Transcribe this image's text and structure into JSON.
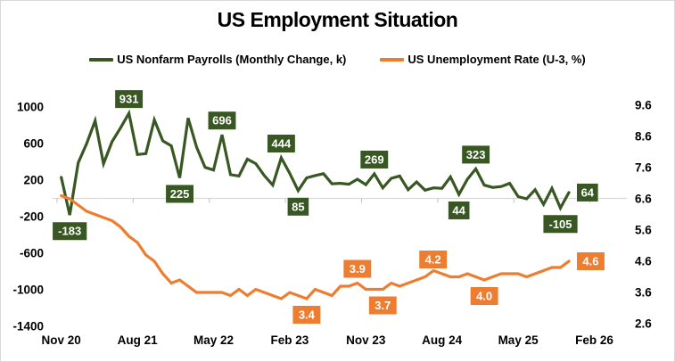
{
  "title": "US Employment Situation",
  "legend": [
    {
      "label": "US Nonfarm Payrolls (Monthly Change, k)",
      "color": "#385723"
    },
    {
      "label": "US Unemployment Rate (U-3, %)",
      "color": "#ED7D31"
    }
  ],
  "colors": {
    "payrolls_green": "#385723",
    "unemployment_orange": "#ED7D31",
    "axis_line": "#D9D9D9",
    "tick_mark": "#BFBFBF",
    "axis_text": "#000000",
    "label_text": "#FFFFFF"
  },
  "chart_data": {
    "type": "line",
    "x_unit": "month",
    "start_month": "Nov 2020",
    "end_month": "Nov 2025",
    "categories_shown": [
      {
        "label": "Nov 20",
        "m": 0
      },
      {
        "label": "Aug 21",
        "m": 9
      },
      {
        "label": "May 22",
        "m": 18
      },
      {
        "label": "Feb 23",
        "m": 27
      },
      {
        "label": "Nov 23",
        "m": 36
      },
      {
        "label": "Aug 24",
        "m": 45
      },
      {
        "label": "May 25",
        "m": 54
      },
      {
        "label": "Feb 26",
        "m": 63
      }
    ],
    "axes": {
      "left": {
        "title": "US Nonfarm Payrolls (Monthly Change, k)",
        "ticks": [
          1000,
          600,
          200,
          -200,
          -600,
          -1000,
          -1400
        ],
        "range": [
          -1400,
          1000
        ]
      },
      "right": {
        "title": "US Unemployment Rate (U-3, %)",
        "ticks": [
          9.6,
          8.6,
          7.6,
          6.6,
          5.6,
          4.6,
          3.6,
          2.6
        ],
        "range": [
          2.6,
          9.6
        ]
      }
    },
    "gridlines": {
      "left_values": [
        0
      ]
    },
    "legend_position": "top",
    "series": [
      {
        "name": "US Nonfarm Payrolls (Monthly Change, k)",
        "axis": "left",
        "color": "#385723",
        "values": [
          230,
          -183,
          390,
          600,
          850,
          380,
          620,
          770,
          931,
          480,
          490,
          860,
          630,
          575,
          225,
          880,
          560,
          340,
          310,
          696,
          260,
          245,
          430,
          380,
          250,
          145,
          444,
          275,
          85,
          225,
          250,
          270,
          160,
          165,
          155,
          210,
          150,
          269,
          115,
          220,
          245,
          95,
          180,
          90,
          115,
          110,
          235,
          44,
          210,
          323,
          145,
          120,
          130,
          165,
          20,
          -5,
          95,
          -65,
          110,
          -105,
          64
        ]
      },
      {
        "name": "US Unemployment Rate (U-3, %)",
        "axis": "right",
        "color": "#ED7D31",
        "values": [
          6.7,
          6.6,
          6.4,
          6.2,
          6.1,
          6.0,
          5.9,
          5.7,
          5.4,
          5.2,
          4.8,
          4.6,
          4.2,
          3.9,
          4.0,
          3.8,
          3.6,
          3.6,
          3.6,
          3.6,
          3.5,
          3.7,
          3.5,
          3.7,
          3.6,
          3.5,
          3.4,
          3.6,
          3.5,
          3.4,
          3.7,
          3.6,
          3.5,
          3.8,
          3.8,
          3.9,
          3.7,
          3.7,
          3.7,
          3.9,
          3.8,
          3.9,
          4.0,
          4.1,
          4.3,
          4.2,
          4.1,
          4.1,
          4.2,
          4.1,
          4.0,
          4.1,
          4.2,
          4.2,
          4.2,
          4.1,
          4.2,
          4.3,
          4.4,
          4.4,
          4.6
        ]
      }
    ],
    "data_labels": [
      {
        "series": 0,
        "m": 1,
        "text": "-183",
        "pos": "below"
      },
      {
        "series": 0,
        "m": 8,
        "text": "931",
        "pos": "above"
      },
      {
        "series": 0,
        "m": 14,
        "text": "225",
        "pos": "below"
      },
      {
        "series": 0,
        "m": 19,
        "text": "696",
        "pos": "above"
      },
      {
        "series": 0,
        "m": 26,
        "text": "444",
        "pos": "above"
      },
      {
        "series": 0,
        "m": 28,
        "text": "85",
        "pos": "below"
      },
      {
        "series": 0,
        "m": 37,
        "text": "269",
        "pos": "above"
      },
      {
        "series": 0,
        "m": 47,
        "text": "44",
        "pos": "below"
      },
      {
        "series": 0,
        "m": 49,
        "text": "323",
        "pos": "above"
      },
      {
        "series": 0,
        "m": 59,
        "text": "-105",
        "pos": "below"
      },
      {
        "series": 0,
        "m": 60,
        "text": "64",
        "pos": "right"
      },
      {
        "series": 1,
        "m": 29,
        "text": "3.4",
        "pos": "below"
      },
      {
        "series": 1,
        "m": 35,
        "text": "3.9",
        "pos": "above"
      },
      {
        "series": 1,
        "m": 38,
        "text": "3.7",
        "pos": "below"
      },
      {
        "series": 1,
        "m": 45,
        "text": "4.2",
        "pos": "above",
        "dx": -10
      },
      {
        "series": 1,
        "m": 50,
        "text": "4.0",
        "pos": "below"
      },
      {
        "series": 1,
        "m": 60,
        "text": "4.6",
        "pos": "right"
      }
    ]
  }
}
